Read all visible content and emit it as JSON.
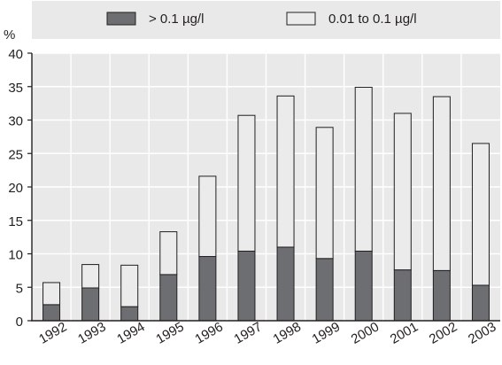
{
  "chart_data": {
    "type": "bar",
    "stacked": true,
    "y_unit": "%",
    "ylim": [
      0,
      40
    ],
    "y_ticks": [
      0,
      5,
      10,
      15,
      20,
      25,
      30,
      35,
      40
    ],
    "grid": true,
    "legend_position": "top",
    "categories": [
      "1992",
      "1993",
      "1994",
      "1995",
      "1996",
      "1997",
      "1998",
      "1999",
      "2000",
      "2001",
      "2002",
      "2003"
    ],
    "series": [
      {
        "name": "> 0.1 µg/l",
        "color": "#6d6e71",
        "values": [
          2.4,
          4.9,
          2.1,
          6.9,
          9.6,
          10.4,
          11.0,
          9.3,
          10.4,
          7.6,
          7.5,
          5.3
        ]
      },
      {
        "name": "0.01 to 0.1 µg/l",
        "color": "#ebebeb",
        "values": [
          3.3,
          3.5,
          6.2,
          6.4,
          12.0,
          20.3,
          22.6,
          19.6,
          24.5,
          23.4,
          26.0,
          21.2
        ]
      }
    ]
  }
}
